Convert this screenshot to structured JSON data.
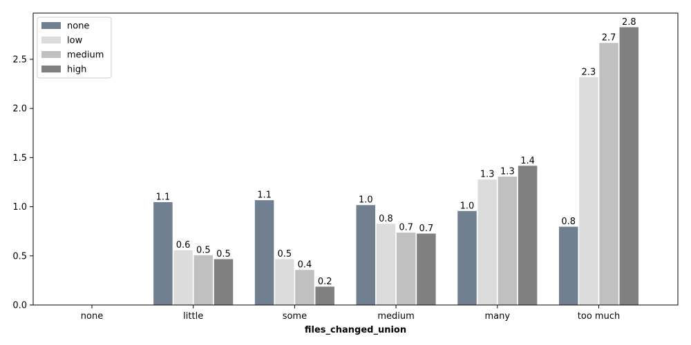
{
  "chart_data": {
    "type": "bar",
    "title": "",
    "xlabel": "files_changed_union",
    "ylabel": "",
    "categories": [
      "none",
      "little",
      "some",
      "medium",
      "many",
      "too much"
    ],
    "series": [
      {
        "name": "none",
        "color": "#708090",
        "values": [
          0.0,
          1.05,
          1.07,
          1.02,
          0.96,
          0.8
        ],
        "labels": [
          "",
          "1.1",
          "1.1",
          "1.0",
          "1.0",
          "0.8"
        ]
      },
      {
        "name": "low",
        "color": "#dcdcdc",
        "values": [
          0.0,
          0.56,
          0.47,
          0.83,
          1.28,
          2.32
        ],
        "labels": [
          "",
          "0.6",
          "0.5",
          "0.8",
          "1.3",
          "2.3"
        ]
      },
      {
        "name": "medium",
        "color": "#c0c0c0",
        "values": [
          0.0,
          0.51,
          0.36,
          0.74,
          1.31,
          2.67
        ],
        "labels": [
          "",
          "0.5",
          "0.4",
          "0.7",
          "1.3",
          "2.7"
        ]
      },
      {
        "name": "high",
        "color": "#808080",
        "values": [
          0.0,
          0.47,
          0.19,
          0.73,
          1.42,
          2.83
        ],
        "labels": [
          "",
          "0.5",
          "0.2",
          "0.7",
          "1.4",
          "2.8"
        ]
      }
    ],
    "ylim": [
      0,
      2.97
    ],
    "yticks": [
      0.0,
      0.5,
      1.0,
      1.5,
      2.0,
      2.5
    ],
    "ytick_labels": [
      "0.0",
      "0.5",
      "1.0",
      "1.5",
      "2.0",
      "2.5"
    ],
    "grid": false,
    "legend_position": "top-left"
  }
}
